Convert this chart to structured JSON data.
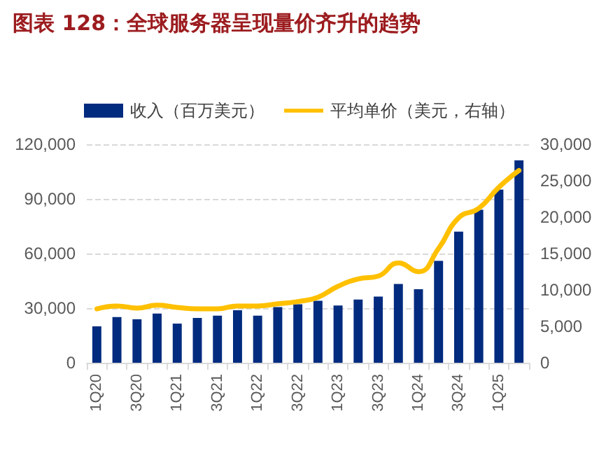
{
  "chart_data": {
    "type": "bar",
    "title": "图表 128：全球服务器呈现量价齐升的趋势",
    "categories": [
      "1Q20",
      null,
      "3Q20",
      null,
      "1Q21",
      null,
      "3Q21",
      null,
      "1Q22",
      null,
      "3Q22",
      null,
      "1Q23",
      null,
      "3Q23",
      null,
      "1Q24",
      null,
      "3Q24",
      null,
      "1Q25",
      null
    ],
    "series": [
      {
        "name": "收入（百万美元）",
        "color": "#002b7f",
        "values": [
          20000,
          25100,
          23900,
          27000,
          21500,
          24600,
          25900,
          28800,
          25900,
          30600,
          32100,
          34000,
          31400,
          34700,
          36300,
          43300,
          40400,
          56000,
          72000,
          84000,
          95100,
          111200
        ]
      },
      {
        "name": "平均单价（美元，右轴）",
        "type": "line",
        "axis": "y2",
        "color": "#ffc000",
        "values": [
          7400,
          7800,
          7500,
          7900,
          7600,
          7400,
          7400,
          7800,
          7800,
          8100,
          8400,
          9000,
          10500,
          11500,
          11900,
          13700,
          12500,
          15700,
          19900,
          21200,
          24100,
          26400
        ]
      }
    ],
    "ylim": [
      0,
      120000
    ],
    "yticks": [
      0,
      {
        "value": 30000,
        "label": "30,000"
      },
      {
        "value": 60000,
        "label": "60,000"
      },
      {
        "value": 90000,
        "label": "90,000"
      },
      {
        "value": 120000,
        "label": "120,000"
      }
    ],
    "y2lim": [
      0,
      30000
    ],
    "y2ticks": [
      0,
      {
        "value": 5000,
        "label": "5,000"
      },
      {
        "value": 10000,
        "label": "10,000"
      },
      {
        "value": 15000,
        "label": "15,000"
      },
      {
        "value": 20000,
        "label": "20,000"
      },
      {
        "value": 25000,
        "label": "25,000"
      },
      {
        "value": 30000,
        "label": "30,000"
      }
    ],
    "grid": "y",
    "legend": "top",
    "marker": "none",
    "line_style": "solid"
  }
}
